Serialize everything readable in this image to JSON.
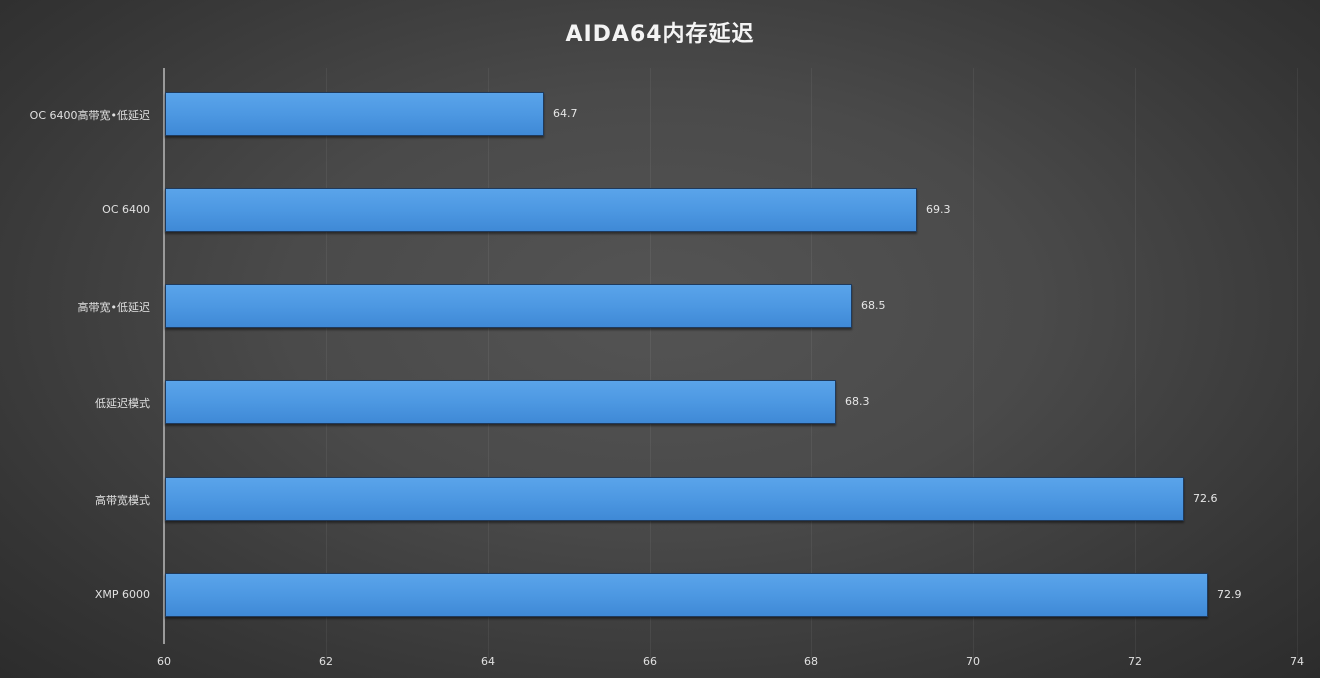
{
  "chart_data": {
    "type": "bar",
    "orientation": "horizontal",
    "title": "AIDA64内存延迟",
    "xlabel": "",
    "ylabel": "",
    "categories": [
      "OC 6400高带宽•低延迟",
      "OC 6400",
      "高带宽•低延迟",
      "低延迟模式",
      "高带宽模式",
      "XMP 6000"
    ],
    "values": [
      64.7,
      69.3,
      68.5,
      68.3,
      72.6,
      72.9
    ],
    "value_labels": [
      "64.7",
      "69.3",
      "68.5",
      "68.3",
      "72.6",
      "72.9"
    ],
    "xlim": [
      60,
      74
    ],
    "x_ticks": [
      "60",
      "62",
      "64",
      "66",
      "68",
      "70",
      "72",
      "74"
    ],
    "grid": true,
    "legend": "none",
    "bar_color": "#4d98e2",
    "background_color": "#4a4a4a"
  }
}
